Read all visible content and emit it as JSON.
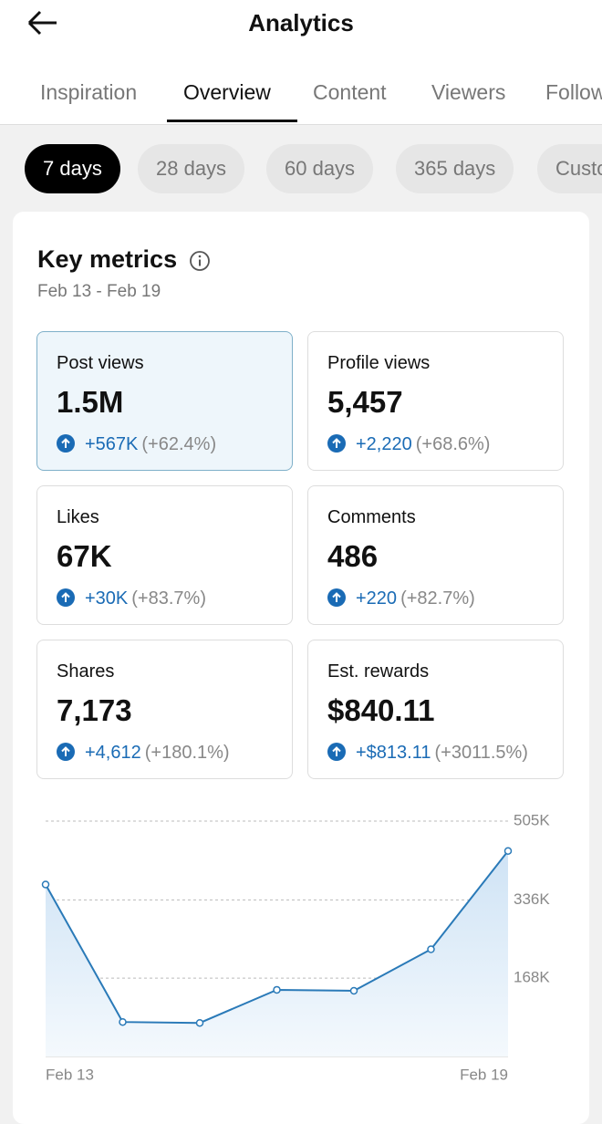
{
  "header": {
    "title": "Analytics"
  },
  "tabs": {
    "items": [
      "Inspiration",
      "Overview",
      "Content",
      "Viewers",
      "Followers"
    ],
    "active": 1
  },
  "ranges": {
    "items": [
      "7 days",
      "28 days",
      "60 days",
      "365 days",
      "Custom"
    ],
    "active": 0
  },
  "key_metrics": {
    "title": "Key metrics",
    "date_range": "Feb 13 - Feb 19",
    "selected": 0,
    "metrics": [
      {
        "label": "Post views",
        "value": "1.5M",
        "change": "+567K",
        "percent": "(+62.4%)"
      },
      {
        "label": "Profile views",
        "value": "5,457",
        "change": "+2,220",
        "percent": "(+68.6%)"
      },
      {
        "label": "Likes",
        "value": "67K",
        "change": "+30K",
        "percent": "(+83.7%)"
      },
      {
        "label": "Comments",
        "value": "486",
        "change": "+220",
        "percent": "(+82.7%)"
      },
      {
        "label": "Shares",
        "value": "7,173",
        "change": "+4,612",
        "percent": "(+180.1%)"
      },
      {
        "label": "Est. rewards",
        "value": "$840.11",
        "change": "+$813.11",
        "percent": "(+3011.5%)"
      }
    ]
  },
  "chart_data": {
    "type": "line",
    "categories": [
      "Feb 13",
      null,
      null,
      null,
      null,
      null,
      "Feb 19"
    ],
    "values": [
      369000,
      74000,
      72000,
      143000,
      141000,
      230000,
      441000
    ],
    "color": "#2a7ab8",
    "ylim": [
      0,
      505000
    ],
    "yticks": [
      {
        "value": 168000,
        "label": "168K"
      },
      {
        "value": 336000,
        "label": "336K"
      },
      {
        "value": 505000,
        "label": "505K"
      }
    ],
    "grid": true
  }
}
